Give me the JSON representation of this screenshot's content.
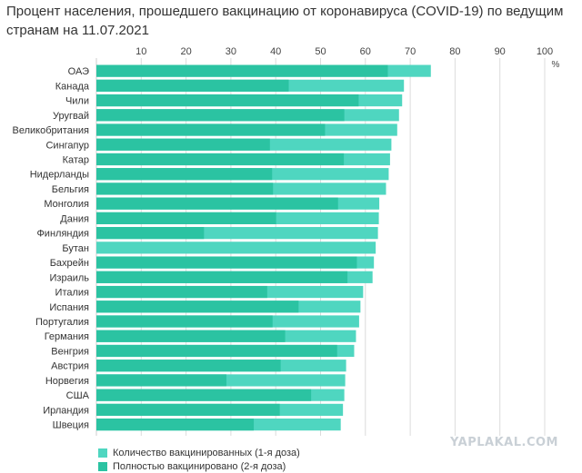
{
  "chart_data": {
    "type": "bar",
    "orientation": "horizontal",
    "stacked": false,
    "overlaid": true,
    "title": "Процент населения, прошедшего вакцинацию от коронавируса (COVID-19) по ведущим странам на 11.07.2021",
    "unit": "%",
    "xlim": [
      0,
      100
    ],
    "x_ticks": [
      "10",
      "20",
      "30",
      "40",
      "50",
      "60",
      "70",
      "80",
      "90",
      "100"
    ],
    "grid": true,
    "legend_position": "bottom-left",
    "categories": [
      "ОАЭ",
      "Канада",
      "Чили",
      "Уругвай",
      "Великобритания",
      "Сингапур",
      "Катар",
      "Нидерланды",
      "Бельгия",
      "Монголия",
      "Дания",
      "Финляндия",
      "Бутан",
      "Бахрейн",
      "Израиль",
      "Италия",
      "Испания",
      "Португалия",
      "Германия",
      "Венгрия",
      "Австрия",
      "Норвегия",
      "США",
      "Ирландия",
      "Швеция"
    ],
    "series": [
      {
        "name": "Количество вакцинированных (1-я доза)",
        "color": "#4fd6c0",
        "values": [
          74.6,
          68.6,
          68.2,
          67.5,
          67.1,
          65.8,
          65.5,
          65.2,
          64.6,
          63.1,
          63.0,
          62.8,
          62.3,
          61.9,
          61.6,
          59.5,
          58.9,
          58.6,
          57.9,
          57.5,
          55.7,
          55.5,
          55.3,
          55.0,
          54.5
        ]
      },
      {
        "name": "Полностью вакцинировано (2-я доза)",
        "color": "#2bc3a2",
        "values": [
          65.0,
          42.9,
          58.5,
          55.3,
          51.0,
          38.7,
          55.2,
          39.2,
          39.4,
          53.9,
          40.1,
          24.0,
          0,
          58.1,
          56.0,
          38.1,
          45.1,
          39.3,
          42.1,
          53.7,
          41.1,
          29.0,
          47.9,
          40.9,
          35.1
        ]
      }
    ]
  },
  "watermark": "YAPLAKAL.COM"
}
